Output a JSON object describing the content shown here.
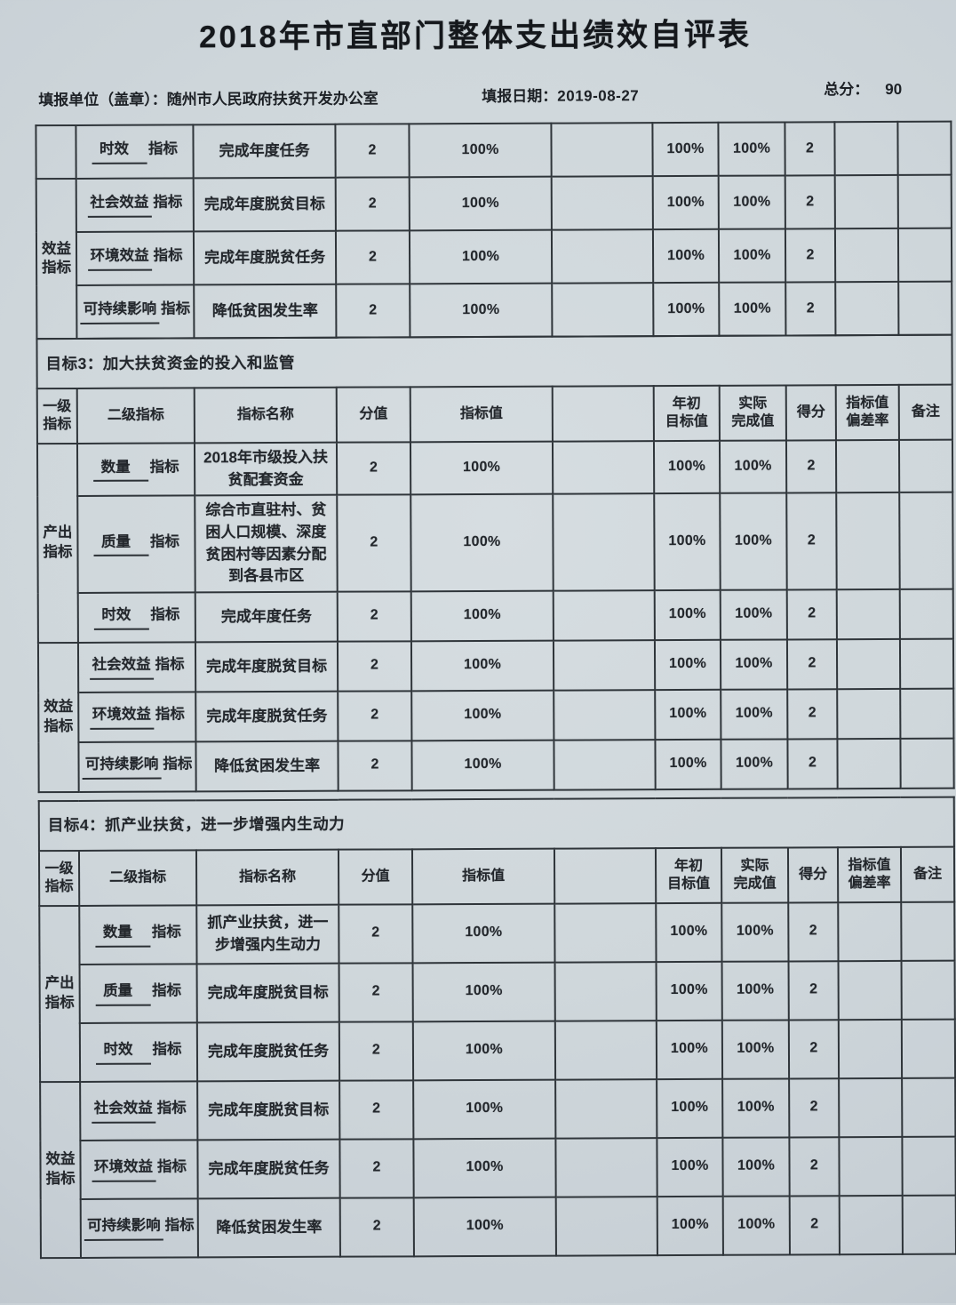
{
  "page": {
    "title": "2018年市直部门整体支出绩效自评表",
    "unit_label": "填报单位（盖章）：",
    "unit_value": "随州市人民政府扶贫开发办公室",
    "date_label": "填报日期：",
    "date_value": "2019-08-27",
    "total_label": "总分：",
    "total_value": "90"
  },
  "colors": {
    "paper": "#ccd4d9",
    "ink": "#23272c",
    "table_border": "#2f353a"
  },
  "table": {
    "columns": [
      "一级\n指标",
      "二级指标",
      "指标名称",
      "分值",
      "指标值",
      "",
      "年初\n目标值",
      "实际\n完成值",
      "得分",
      "指标值\n偏差率",
      "备注"
    ],
    "sections": [
      {
        "goal_title": "",
        "show_header": false,
        "groups": [
          {
            "level1": "",
            "rows": [
              {
                "level2_underlined": "时效",
                "level2_suffix": "指标",
                "indicator_name": "完成年度任务",
                "score_value": "2",
                "indicator_value": "100%",
                "blank": "",
                "year_start_target": "100%",
                "actual_completion": "100%",
                "score": "2",
                "deviation_rate": "",
                "remark": ""
              }
            ]
          },
          {
            "level1": "效益\n指标",
            "rows": [
              {
                "level2_underlined": "社会效益",
                "level2_suffix": "指标",
                "indicator_name": "完成年度脱贫目标",
                "score_value": "2",
                "indicator_value": "100%",
                "blank": "",
                "year_start_target": "100%",
                "actual_completion": "100%",
                "score": "2",
                "deviation_rate": "",
                "remark": ""
              },
              {
                "level2_underlined": "环境效益",
                "level2_suffix": "指标",
                "indicator_name": "完成年度脱贫任务",
                "score_value": "2",
                "indicator_value": "100%",
                "blank": "",
                "year_start_target": "100%",
                "actual_completion": "100%",
                "score": "2",
                "deviation_rate": "",
                "remark": ""
              },
              {
                "level2_underlined": "可持续影响",
                "level2_suffix": "指标",
                "indicator_name": "降低贫困发生率",
                "score_value": "2",
                "indicator_value": "100%",
                "blank": "",
                "year_start_target": "100%",
                "actual_completion": "100%",
                "score": "2",
                "deviation_rate": "",
                "remark": ""
              }
            ]
          }
        ]
      },
      {
        "goal_title": "目标3：加大扶贫资金的投入和监管",
        "show_header": true,
        "groups": [
          {
            "level1": "产出\n指标",
            "rows": [
              {
                "level2_underlined": "数量",
                "level2_suffix": "指标",
                "indicator_name": "2018年市级投入扶贫配套资金",
                "score_value": "2",
                "indicator_value": "100%",
                "blank": "",
                "year_start_target": "100%",
                "actual_completion": "100%",
                "score": "2",
                "deviation_rate": "",
                "remark": ""
              },
              {
                "level2_underlined": "质量",
                "level2_suffix": "指标",
                "indicator_name": "综合市直驻村、贫困人口规模、深度贫困村等因素分配到各县市区",
                "score_value": "2",
                "indicator_value": "100%",
                "blank": "",
                "year_start_target": "100%",
                "actual_completion": "100%",
                "score": "2",
                "deviation_rate": "",
                "remark": ""
              },
              {
                "level2_underlined": "时效",
                "level2_suffix": "指标",
                "indicator_name": "完成年度任务",
                "score_value": "2",
                "indicator_value": "100%",
                "blank": "",
                "year_start_target": "100%",
                "actual_completion": "100%",
                "score": "2",
                "deviation_rate": "",
                "remark": ""
              }
            ]
          },
          {
            "level1": "效益\n指标",
            "rows": [
              {
                "level2_underlined": "社会效益",
                "level2_suffix": "指标",
                "indicator_name": "完成年度脱贫目标",
                "score_value": "2",
                "indicator_value": "100%",
                "blank": "",
                "year_start_target": "100%",
                "actual_completion": "100%",
                "score": "2",
                "deviation_rate": "",
                "remark": ""
              },
              {
                "level2_underlined": "环境效益",
                "level2_suffix": "指标",
                "indicator_name": "完成年度脱贫任务",
                "score_value": "2",
                "indicator_value": "100%",
                "blank": "",
                "year_start_target": "100%",
                "actual_completion": "100%",
                "score": "2",
                "deviation_rate": "",
                "remark": ""
              },
              {
                "level2_underlined": "可持续影响",
                "level2_suffix": "指标",
                "indicator_name": "降低贫困发生率",
                "score_value": "2",
                "indicator_value": "100%",
                "blank": "",
                "year_start_target": "100%",
                "actual_completion": "100%",
                "score": "2",
                "deviation_rate": "",
                "remark": ""
              }
            ]
          }
        ]
      },
      {
        "goal_title": "目标4：抓产业扶贫，进一步增强内生动力",
        "show_header": true,
        "groups": [
          {
            "level1": "产出\n指标",
            "rows": [
              {
                "level2_underlined": "数量",
                "level2_suffix": "指标",
                "indicator_name": "抓产业扶贫，进一步增强内生动力",
                "score_value": "2",
                "indicator_value": "100%",
                "blank": "",
                "year_start_target": "100%",
                "actual_completion": "100%",
                "score": "2",
                "deviation_rate": "",
                "remark": ""
              },
              {
                "level2_underlined": "质量",
                "level2_suffix": "指标",
                "indicator_name": "完成年度脱贫目标",
                "score_value": "2",
                "indicator_value": "100%",
                "blank": "",
                "year_start_target": "100%",
                "actual_completion": "100%",
                "score": "2",
                "deviation_rate": "",
                "remark": ""
              },
              {
                "level2_underlined": "时效",
                "level2_suffix": "指标",
                "indicator_name": "完成年度脱贫任务",
                "score_value": "2",
                "indicator_value": "100%",
                "blank": "",
                "year_start_target": "100%",
                "actual_completion": "100%",
                "score": "2",
                "deviation_rate": "",
                "remark": ""
              }
            ]
          },
          {
            "level1": "效益\n指标",
            "rows": [
              {
                "level2_underlined": "社会效益",
                "level2_suffix": "指标",
                "indicator_name": "完成年度脱贫目标",
                "score_value": "2",
                "indicator_value": "100%",
                "blank": "",
                "year_start_target": "100%",
                "actual_completion": "100%",
                "score": "2",
                "deviation_rate": "",
                "remark": ""
              },
              {
                "level2_underlined": "环境效益",
                "level2_suffix": "指标",
                "indicator_name": "完成年度脱贫任务",
                "score_value": "2",
                "indicator_value": "100%",
                "blank": "",
                "year_start_target": "100%",
                "actual_completion": "100%",
                "score": "2",
                "deviation_rate": "",
                "remark": ""
              },
              {
                "level2_underlined": "可持续影响",
                "level2_suffix": "指标",
                "indicator_name": "降低贫困发生率",
                "score_value": "2",
                "indicator_value": "100%",
                "blank": "",
                "year_start_target": "100%",
                "actual_completion": "100%",
                "score": "2",
                "deviation_rate": "",
                "remark": ""
              }
            ]
          }
        ]
      }
    ]
  }
}
